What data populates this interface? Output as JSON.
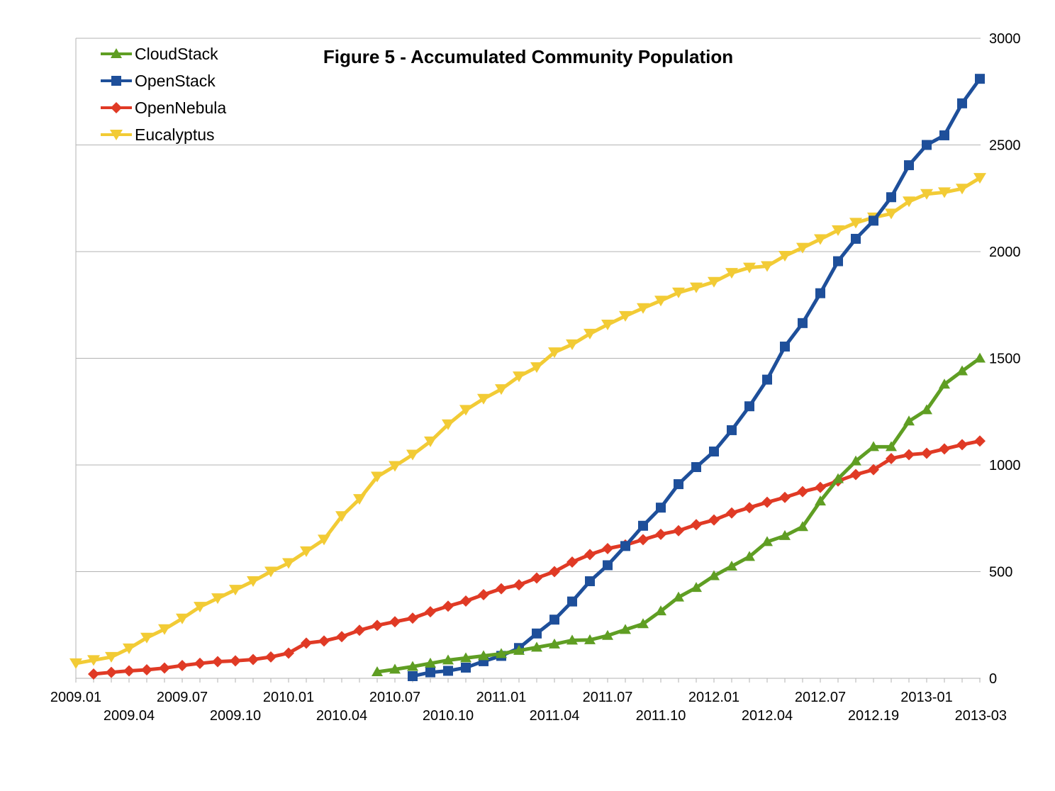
{
  "chart_data": {
    "type": "line",
    "title": "Figure 5 - Accumulated Community Population",
    "xlabel": "",
    "ylabel": "",
    "ylim": [
      0,
      3000
    ],
    "yticks": [
      "0",
      "500",
      "1000",
      "1500",
      "2000",
      "2500",
      "3000"
    ],
    "y_axis_side": "right",
    "grid": true,
    "legend_position": "top-left",
    "x_tick_labels_row1": [
      "2009.01",
      "2009.07",
      "2010.01",
      "2010.07",
      "2011.01",
      "2011.07",
      "2012.01",
      "2012.07",
      "2013-01"
    ],
    "x_tick_labels_row2": [
      "2009.04",
      "2009.10",
      "2010.04",
      "2010.10",
      "2011.04",
      "2011.10",
      "2012.04",
      "2012.19",
      "2013-03"
    ],
    "num_points": 52,
    "series": [
      {
        "name": "CloudStack",
        "color": "#5f9e23",
        "marker": "triangle-up",
        "start_index": 17,
        "values": [
          30,
          42,
          55,
          70,
          85,
          95,
          105,
          115,
          130,
          145,
          160,
          178,
          180,
          200,
          228,
          255,
          315,
          380,
          425,
          480,
          525,
          570,
          640,
          668,
          710,
          830,
          935,
          1018,
          1085,
          1085,
          1205,
          1258,
          1378,
          1440,
          1500
        ]
      },
      {
        "name": "OpenStack",
        "color": "#1e4f9a",
        "marker": "square",
        "start_index": 19,
        "values": [
          10,
          28,
          35,
          50,
          80,
          105,
          142,
          210,
          275,
          360,
          455,
          530,
          620,
          715,
          800,
          910,
          990,
          1063,
          1163,
          1275,
          1400,
          1555,
          1665,
          1805,
          1955,
          2060,
          2145,
          2255,
          2405,
          2500,
          2545,
          2695,
          2810
        ]
      },
      {
        "name": "OpenNebula",
        "color": "#e03a25",
        "marker": "diamond",
        "start_index": 1,
        "values": [
          20,
          28,
          35,
          40,
          48,
          60,
          70,
          78,
          82,
          88,
          100,
          118,
          165,
          175,
          195,
          225,
          248,
          265,
          282,
          312,
          338,
          362,
          392,
          420,
          438,
          470,
          500,
          545,
          580,
          608,
          625,
          650,
          675,
          692,
          720,
          742,
          775,
          800,
          825,
          848,
          875,
          895,
          925,
          955,
          978,
          1030,
          1048,
          1055,
          1075,
          1095,
          1112
        ]
      },
      {
        "name": "Eucalyptus",
        "color": "#f2cb35",
        "marker": "triangle-down",
        "start_index": 0,
        "values": [
          70,
          85,
          100,
          140,
          190,
          230,
          280,
          335,
          375,
          415,
          455,
          500,
          540,
          595,
          650,
          760,
          840,
          945,
          995,
          1048,
          1110,
          1190,
          1258,
          1310,
          1355,
          1415,
          1458,
          1528,
          1565,
          1615,
          1658,
          1698,
          1735,
          1770,
          1808,
          1832,
          1858,
          1900,
          1925,
          1932,
          1980,
          2018,
          2058,
          2100,
          2135,
          2160,
          2178,
          2235,
          2270,
          2278,
          2295,
          2345
        ]
      }
    ]
  }
}
